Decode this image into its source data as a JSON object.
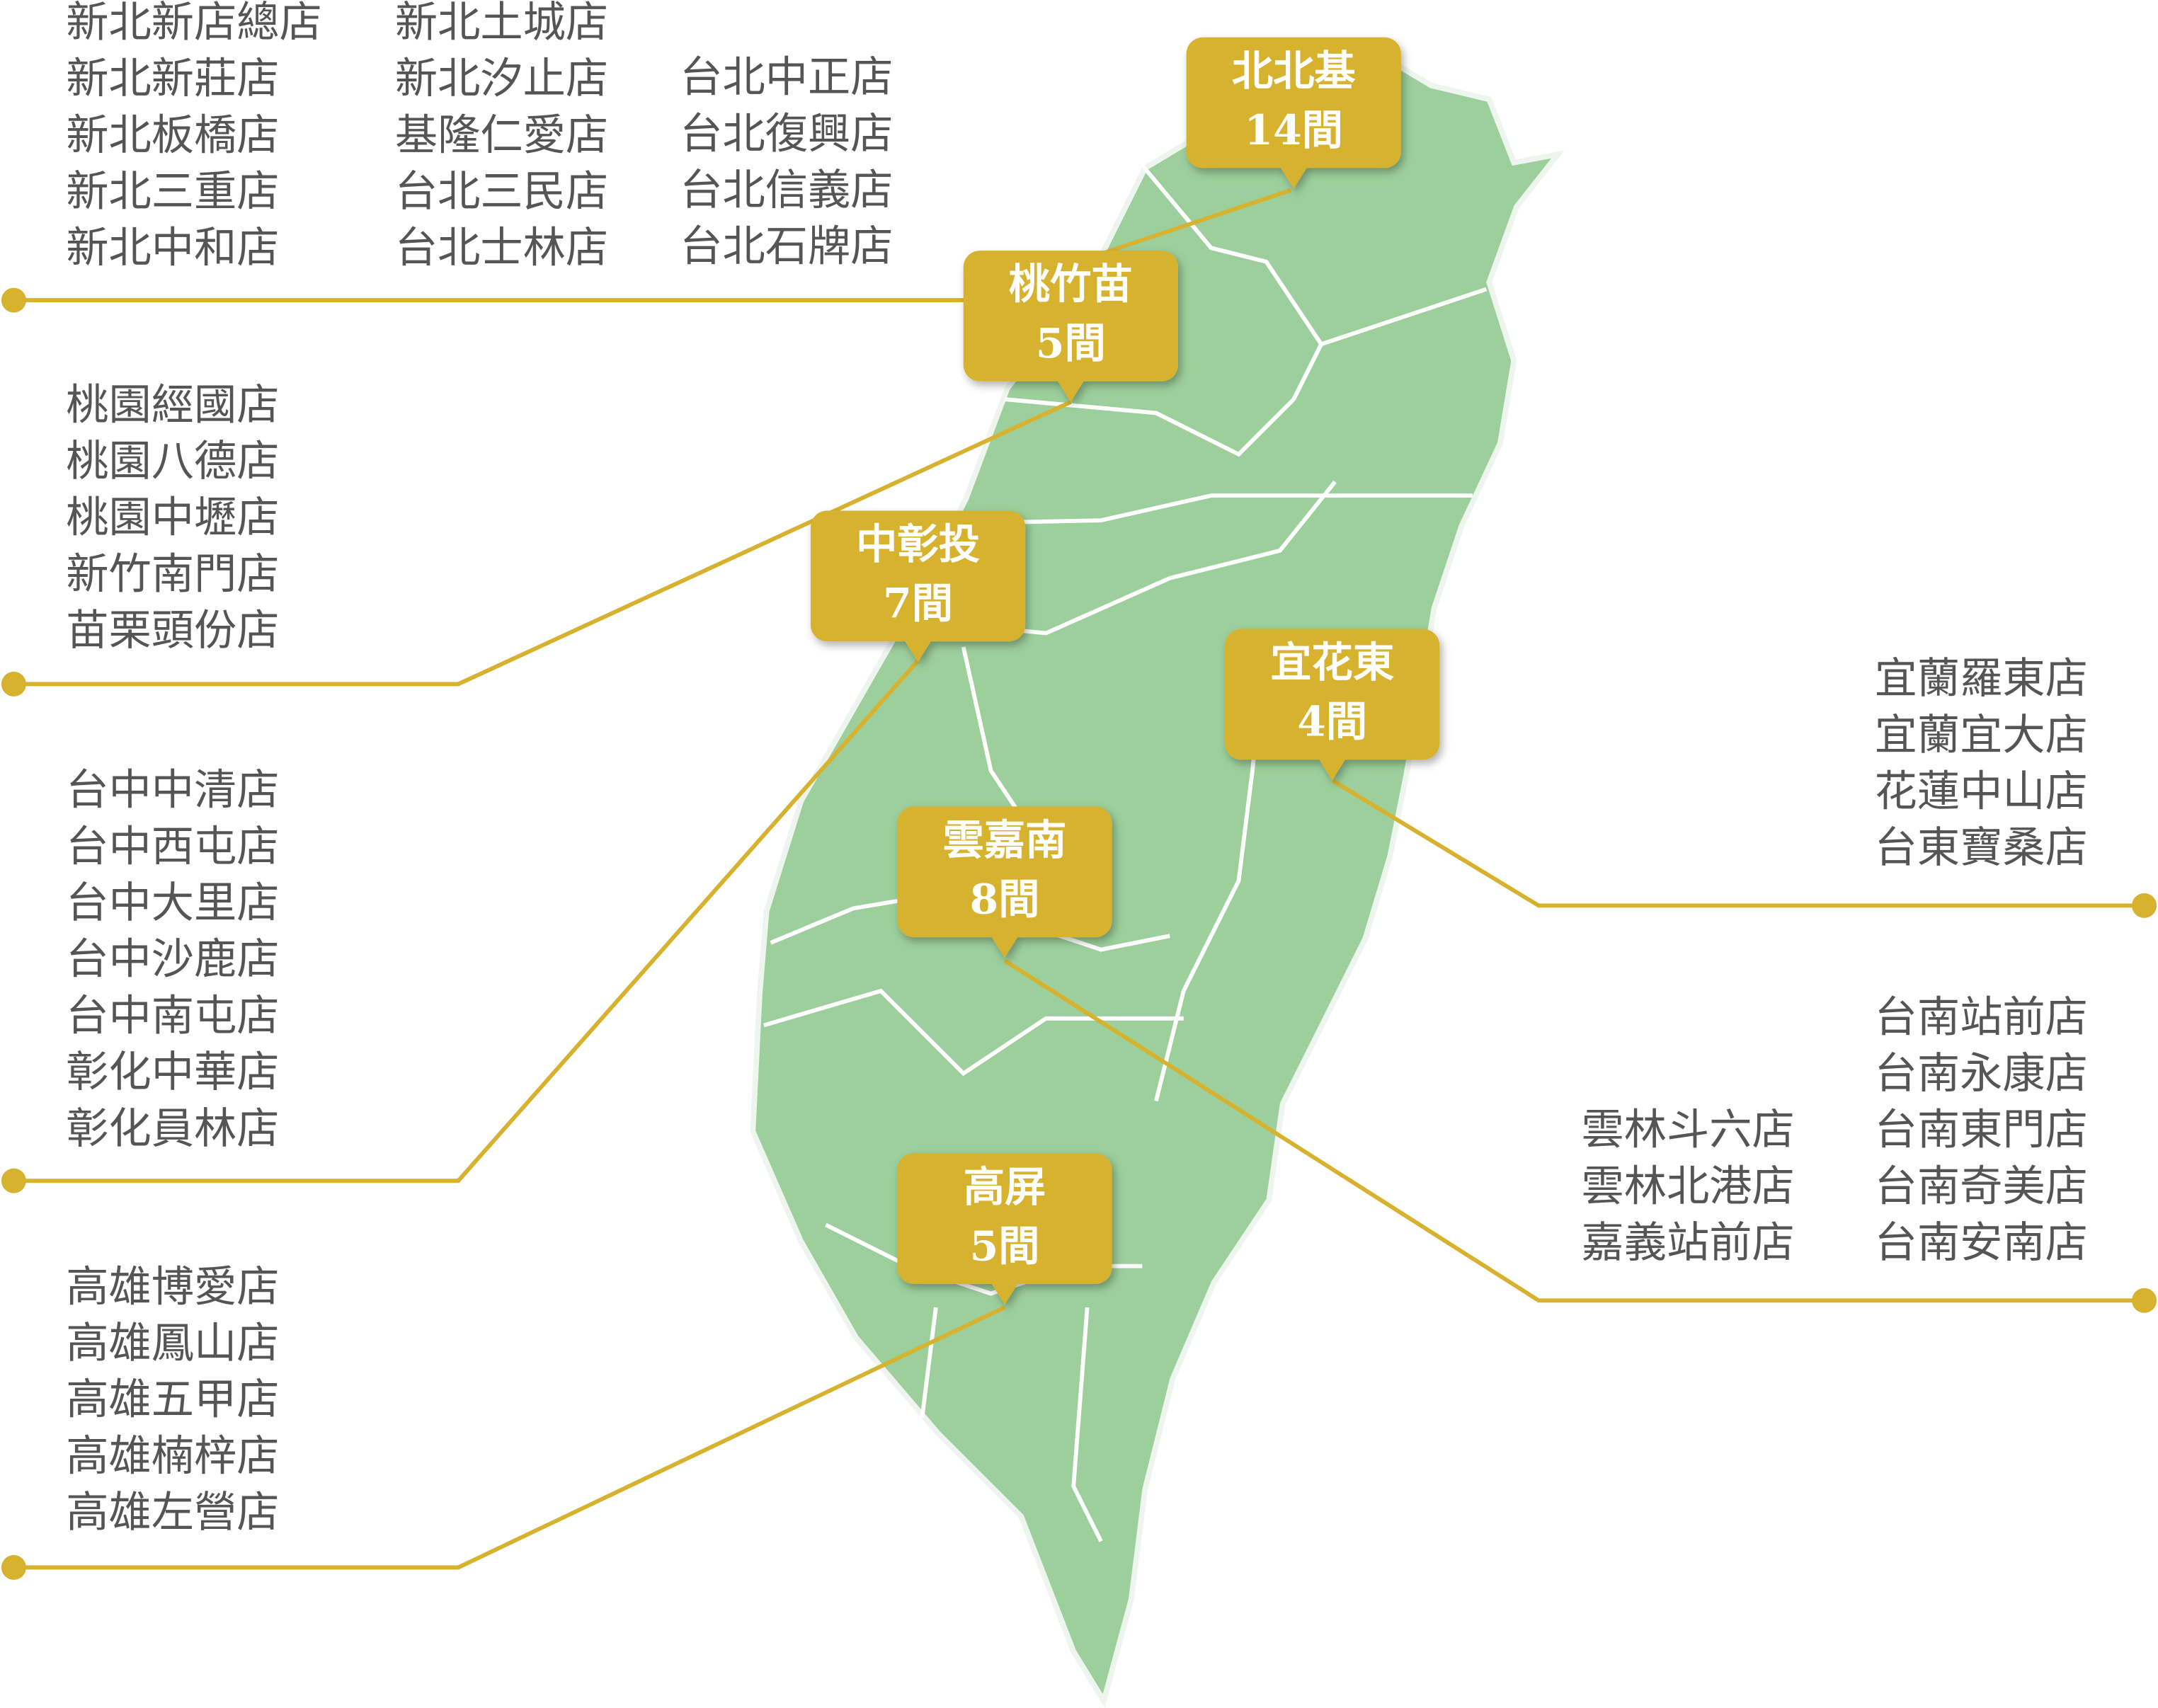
{
  "regions": [
    {
      "name": "北北基",
      "count": "14間",
      "store_columns": [
        [
          "新北新店總店",
          "新北新莊店",
          "新北板橋店",
          "新北三重店",
          "新北中和店"
        ],
        [
          "新北土城店",
          "新北汐止店",
          "基隆仁愛店",
          "台北三民店",
          "台北士林店"
        ],
        [
          "台北中正店",
          "台北復興店",
          "台北信義店",
          "台北石牌店"
        ]
      ]
    },
    {
      "name": "桃竹苗",
      "count": "5間",
      "store_columns": [
        [
          "桃園經國店",
          "桃園八德店",
          "桃園中壢店",
          "新竹南門店",
          "苗栗頭份店"
        ]
      ]
    },
    {
      "name": "中彰投",
      "count": "7間",
      "store_columns": [
        [
          "台中中清店",
          "台中西屯店",
          "台中大里店",
          "台中沙鹿店",
          "台中南屯店",
          "彰化中華店",
          "彰化員林店"
        ]
      ]
    },
    {
      "name": "宜花東",
      "count": "4間",
      "store_columns": [
        [
          "宜蘭羅東店",
          "宜蘭宜大店",
          "花蓮中山店",
          "台東寶桑店"
        ]
      ]
    },
    {
      "name": "雲嘉南",
      "count": "8間",
      "store_columns": [
        [
          "雲林斗六店",
          "雲林北港店",
          "嘉義站前店"
        ],
        [
          "台南站前店",
          "台南永康店",
          "台南東門店",
          "台南奇美店",
          "台南安南店"
        ]
      ]
    },
    {
      "name": "高屏",
      "count": "5間",
      "store_columns": [
        [
          "高雄博愛店",
          "高雄鳳山店",
          "高雄五甲店",
          "高雄楠梓店",
          "高雄左營店"
        ]
      ]
    }
  ]
}
